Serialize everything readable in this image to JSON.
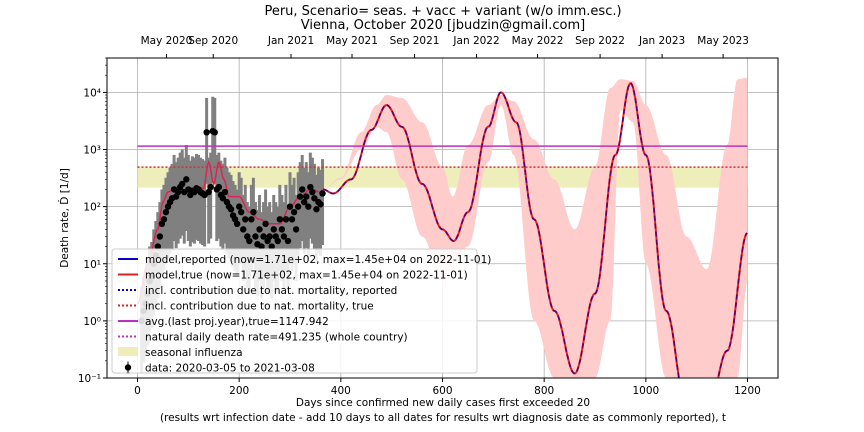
{
  "chart_data": {
    "type": "line",
    "title_line1": "Peru, Scenario= seas. + vacc + variant (w/o imm.esc.)",
    "title_line2": "Vienna, October 2020 [jbudzin@gmail.com]",
    "xlabel_line1": "Days since confirmed new daily cases first exceeded 20",
    "xlabel_line2": "(results wrt infection date - add 10 days to all dates for results wrt diagnosis date as commonly reported), t",
    "ylabel": "Death rate, Ḋ [1/d]",
    "xlim": [
      -60,
      1260
    ],
    "ylim": [
      0.1,
      40000
    ],
    "yscale": "log",
    "grid": true,
    "x_ticks": [
      0,
      200,
      400,
      600,
      800,
      1000,
      1200
    ],
    "x_tick_labels": [
      "0",
      "200",
      "400",
      "600",
      "800",
      "1000",
      "1200"
    ],
    "y_ticks": [
      0.1,
      1,
      10,
      100,
      1000,
      10000
    ],
    "y_tick_labels": [
      "10⁻¹",
      "10⁰",
      "10¹",
      "10²",
      "10³",
      "10⁴"
    ],
    "top_axis": {
      "ticks": [
        57,
        149,
        302,
        422,
        545,
        667,
        787,
        910,
        1032,
        1152
      ],
      "labels": [
        "May 2020",
        "Sep 2020",
        "Jan 2021",
        "May 2021",
        "Sep 2021",
        "Jan 2022",
        "May 2022",
        "Sep 2022",
        "Jan 2023",
        "May 2023"
      ]
    },
    "legend_position": "lower-left",
    "legend": [
      {
        "label": "model,reported (now=1.71e+02, max=1.45e+04 on 2022-11-01)",
        "style": "solid",
        "color": "#0000cc"
      },
      {
        "label": "model,true (now=1.71e+02, max=1.45e+04 on 2022-11-01)",
        "style": "solid",
        "color": "#dd2222"
      },
      {
        "label": "incl. contribution due to nat. mortality, reported",
        "style": "dotted",
        "color": "#0000cc"
      },
      {
        "label": "incl. contribution due to nat. mortality, true",
        "style": "dotted",
        "color": "#dd2222"
      },
      {
        "label": "avg.(last proj.year),true=1147.942",
        "style": "solid",
        "color": "#bb33bb"
      },
      {
        "label": "natural daily death rate=491.235 (whole country)",
        "style": "dotted",
        "color": "#bb33bb"
      },
      {
        "label": "seasonal influenza",
        "style": "patch",
        "color": "#eeeebb"
      },
      {
        "label": "data: 2020-03-05 to 2021-03-08",
        "style": "marker",
        "color": "#000000"
      }
    ],
    "hlines": [
      {
        "name": "avg.(last proj.year),true",
        "y": 1147.942,
        "x": [
          0,
          1200
        ],
        "color": "#bb33bb"
      },
      {
        "name": "natural daily death rate",
        "y": 491.235,
        "x": [
          0,
          1200
        ],
        "color": "#cc3333"
      }
    ],
    "influenza_band": {
      "x": [
        0,
        1200
      ],
      "y": [
        215,
        500
      ],
      "color": "#eeeebb"
    },
    "model_knots": {
      "x": [
        365,
        385,
        420,
        460,
        490,
        520,
        560,
        600,
        622,
        650,
        690,
        715,
        745,
        780,
        820,
        860,
        900,
        940,
        970,
        1000,
        1040,
        1080,
        1120,
        1160,
        1200
      ],
      "y": [
        200,
        170,
        300,
        2200,
        6000,
        2500,
        250,
        40,
        25,
        80,
        2500,
        10000,
        3000,
        60,
        1.5,
        0.12,
        3,
        800,
        14500,
        800,
        1.5,
        0.03,
        0.02,
        0.3,
        35
      ]
    },
    "fit_knots": {
      "x": [
        0,
        20,
        40,
        50,
        60,
        70,
        90,
        110,
        130,
        140,
        150,
        160,
        170,
        180,
        200,
        220,
        240,
        260,
        280,
        300,
        320,
        340,
        360,
        365
      ],
      "y": [
        2,
        10,
        40,
        120,
        180,
        200,
        190,
        200,
        210,
        600,
        250,
        600,
        300,
        150,
        150,
        80,
        60,
        50,
        50,
        100,
        150,
        200,
        180,
        200
      ]
    },
    "uncertainty_band": {
      "x": [
        365,
        400,
        440,
        470,
        490,
        520,
        560,
        600,
        620,
        650,
        690,
        715,
        740,
        780,
        820,
        860,
        900,
        930,
        950,
        975,
        1000,
        1040,
        1080,
        1120,
        1160,
        1180,
        1200
      ],
      "upper": [
        200,
        320,
        2000,
        6000,
        9000,
        8000,
        3000,
        500,
        150,
        1200,
        6000,
        9000,
        7000,
        1500,
        300,
        40,
        500,
        12000,
        17000,
        16000,
        6000,
        800,
        30,
        8,
        1200,
        17000,
        18000
      ],
      "lower": [
        200,
        300,
        1000,
        2500,
        2000,
        300,
        30,
        5,
        10,
        20,
        600,
        6000,
        800,
        1,
        0.1,
        0.1,
        0.1,
        1,
        5000,
        3000,
        10,
        0.1,
        0.1,
        0.1,
        0.1,
        0.1,
        5
      ]
    },
    "data_points": {
      "x": [
        8,
        12,
        16,
        20,
        24,
        28,
        32,
        36,
        40,
        44,
        48,
        52,
        56,
        60,
        64,
        68,
        72,
        76,
        80,
        84,
        88,
        92,
        96,
        100,
        104,
        108,
        112,
        116,
        120,
        124,
        128,
        132,
        136,
        140,
        144,
        148,
        152,
        156,
        160,
        164,
        168,
        172,
        176,
        180,
        184,
        188,
        192,
        196,
        200,
        204,
        208,
        212,
        216,
        220,
        224,
        228,
        232,
        236,
        240,
        244,
        248,
        252,
        256,
        260,
        264,
        268,
        272,
        276,
        280,
        284,
        288,
        292,
        296,
        300,
        304,
        308,
        312,
        316,
        320,
        324,
        328,
        332,
        336,
        340,
        344,
        348,
        352,
        356,
        360,
        364
      ],
      "y": [
        1,
        1.5,
        2,
        3,
        5,
        6,
        10,
        14,
        20,
        30,
        50,
        60,
        80,
        100,
        120,
        140,
        200,
        150,
        180,
        220,
        250,
        180,
        300,
        200,
        160,
        190,
        180,
        210,
        200,
        180,
        170,
        160,
        2000,
        180,
        220,
        2100,
        2000,
        200,
        220,
        160,
        140,
        180,
        120,
        100,
        90,
        70,
        60,
        50,
        100,
        80,
        40,
        60,
        30,
        25,
        60,
        80,
        30,
        22,
        40,
        20,
        30,
        50,
        25,
        30,
        20,
        40,
        30,
        25,
        60,
        40,
        30,
        60,
        25,
        100,
        60,
        80,
        40,
        100,
        150,
        200,
        120,
        150,
        100,
        220,
        180,
        140,
        90,
        120,
        110,
        170
      ]
    },
    "data_error_bars": "std dev"
  }
}
